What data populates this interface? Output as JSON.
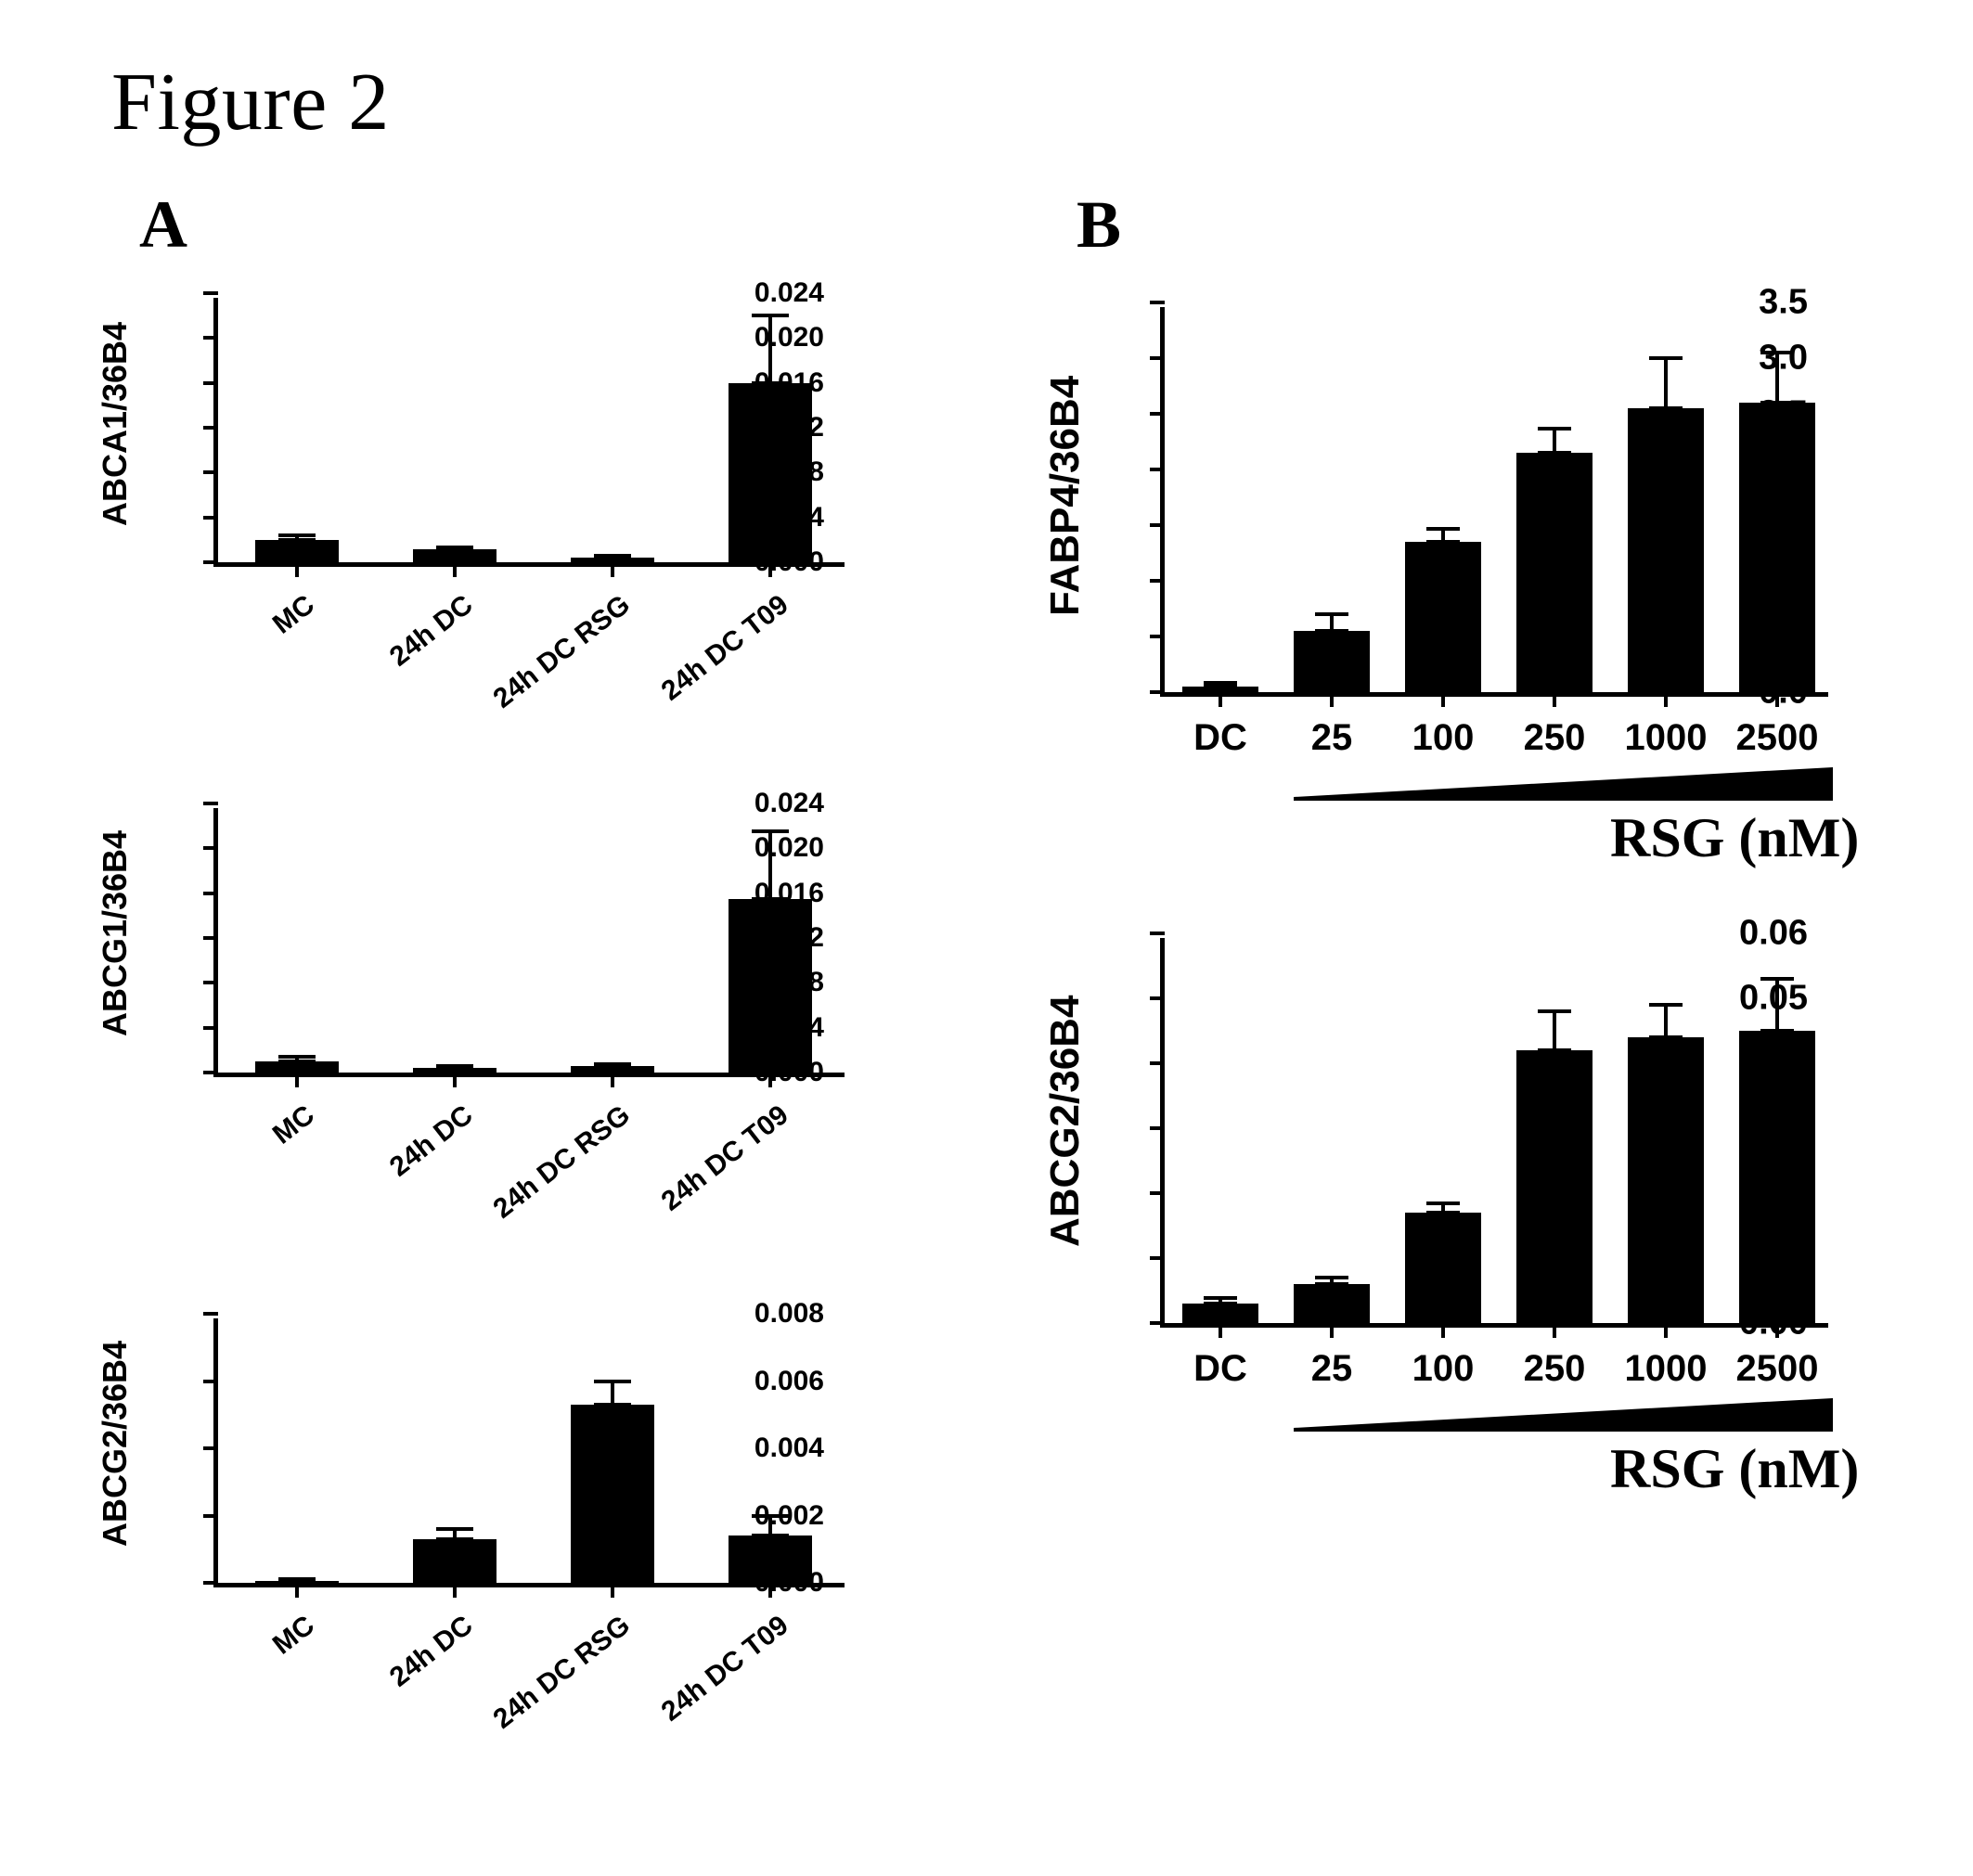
{
  "figure_title": "Figure 2",
  "panel_labels": {
    "A": "A",
    "B": "B"
  },
  "colors": {
    "background": "#ffffff",
    "ink": "#000000",
    "bar": "#000000"
  },
  "layout": {
    "colA_left_padding_for_axes": 150,
    "chartA_width": 680,
    "chartA_height": 290,
    "chartA_gap_below": 260,
    "chartA3_gap_below": 300,
    "chartB_width": 720,
    "chartB_height": 420,
    "chartB_gap_below": 260,
    "bar_width_A": 90,
    "bar_width_B": 82,
    "tick_fontsize_A": 30,
    "ylabel_fontsize_A": 36,
    "xlabel_fontsize_A": 30,
    "tick_fontsize_B": 38,
    "ylabel_fontsize_B": 44,
    "xlabel_fontsize_B": 40,
    "axis_title_B_fontsize": 60
  },
  "panelA": {
    "x_categories": [
      "MC",
      "24h DC",
      "24h DC RSG",
      "24h DC T09"
    ],
    "charts": [
      {
        "id": "A1",
        "ylabel": "ABCA1/36B4",
        "ylim": [
          0.0,
          0.024
        ],
        "ytick_step": 0.004,
        "ytick_decimals": 3,
        "values": [
          0.002,
          0.0012,
          0.0004,
          0.016
        ],
        "errors": [
          0.0004,
          0.0001,
          0.0001,
          0.006
        ]
      },
      {
        "id": "A2",
        "ylabel": "ABCG1/36B4",
        "ylim": [
          0.0,
          0.024
        ],
        "ytick_step": 0.004,
        "ytick_decimals": 3,
        "values": [
          0.001,
          0.0004,
          0.0006,
          0.0155
        ],
        "errors": [
          0.0004,
          0.0001,
          0.0001,
          0.006
        ]
      },
      {
        "id": "A3",
        "ylabel": "ABCG2/36B4",
        "ylim": [
          0.0,
          0.008
        ],
        "ytick_step": 0.002,
        "ytick_decimals": 3,
        "values": [
          5e-05,
          0.0013,
          0.0053,
          0.0014
        ],
        "errors": [
          5e-05,
          0.0003,
          0.0007,
          0.0006
        ]
      }
    ]
  },
  "panelB": {
    "x_categories": [
      "DC",
      "25",
      "100",
      "250",
      "1000",
      "2500"
    ],
    "x_axis_title": "RSG (nM)",
    "wedge_covers_from_index": 1,
    "charts": [
      {
        "id": "B1",
        "ylabel": "FABP4/36B4",
        "ylim": [
          0.0,
          3.5
        ],
        "ytick_step": 0.5,
        "ytick_decimals": 1,
        "values": [
          0.05,
          0.55,
          1.35,
          2.15,
          2.55,
          2.6
        ],
        "errors": [
          0.03,
          0.15,
          0.12,
          0.22,
          0.45,
          0.45
        ]
      },
      {
        "id": "B2",
        "ylabel": "ABCG2/36B4",
        "ylim": [
          0.0,
          0.06
        ],
        "ytick_step": 0.01,
        "ytick_decimals": 2,
        "values": [
          0.003,
          0.006,
          0.017,
          0.042,
          0.044,
          0.045
        ],
        "errors": [
          0.0008,
          0.001,
          0.0015,
          0.006,
          0.005,
          0.008
        ]
      }
    ]
  }
}
